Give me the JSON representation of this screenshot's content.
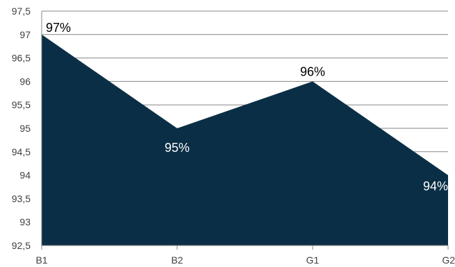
{
  "chart_data": {
    "type": "area",
    "categories": [
      "B1",
      "B2",
      "G1",
      "G2"
    ],
    "values": [
      97,
      95,
      96,
      94
    ],
    "data_labels": [
      "97%",
      "95%",
      "96%",
      "94%"
    ],
    "ylim": [
      92.5,
      97.5
    ],
    "yticks": [
      "92,5",
      "93",
      "93,5",
      "94",
      "94,5",
      "95",
      "95,5",
      "96",
      "96,5",
      "97",
      "97,5"
    ],
    "grid": true,
    "legend": "none",
    "title": "",
    "xlabel": "",
    "ylabel": ""
  },
  "colors": {
    "area_fill": "#0a2e45",
    "label_on_white": "#000000",
    "label_on_fill": "#ffffff"
  }
}
